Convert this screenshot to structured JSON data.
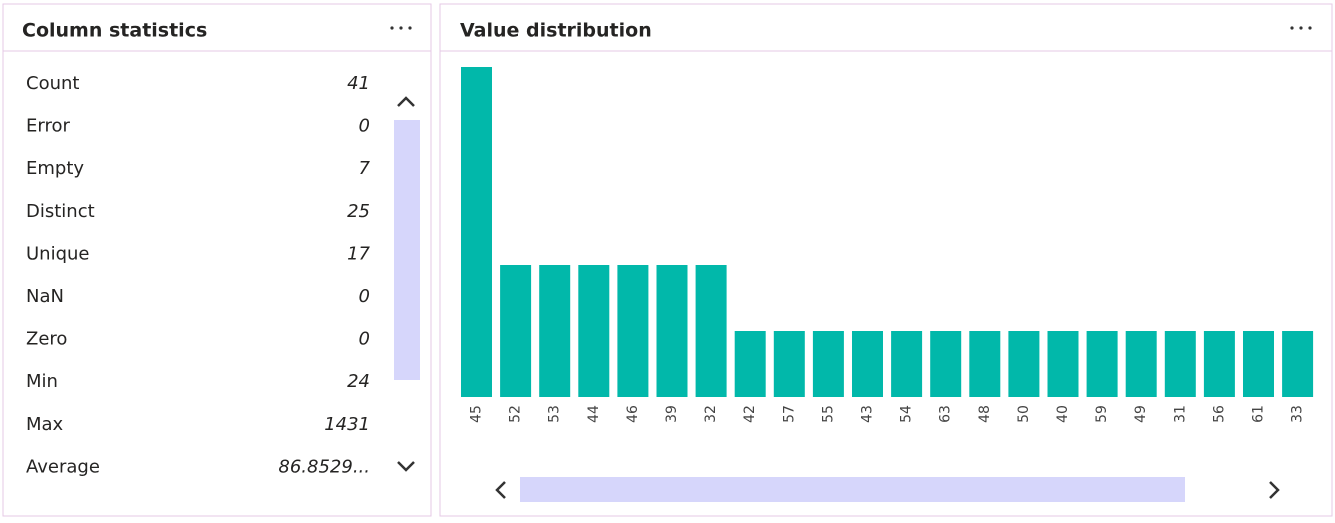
{
  "column_statistics": {
    "title": "Column statistics",
    "rows": [
      {
        "label": "Count",
        "value": 41
      },
      {
        "label": "Error",
        "value": 0
      },
      {
        "label": "Empty",
        "value": 7
      },
      {
        "label": "Distinct",
        "value": 25
      },
      {
        "label": "Unique",
        "value": 17
      },
      {
        "label": "NaN",
        "value": 0
      },
      {
        "label": "Zero",
        "value": 0
      },
      {
        "label": "Min",
        "value": 24
      },
      {
        "label": "Max",
        "value": 1431
      },
      {
        "label": "Average",
        "value": "86.8529..."
      }
    ]
  },
  "chart_data": {
    "type": "bar",
    "title": "Value distribution",
    "color": "#01b8aa",
    "categories": [
      "45",
      "52",
      "53",
      "44",
      "46",
      "39",
      "32",
      "42",
      "57",
      "55",
      "43",
      "54",
      "63",
      "48",
      "50",
      "40",
      "59",
      "49",
      "31",
      "56",
      "61",
      "33"
    ],
    "values": [
      5,
      2,
      2,
      2,
      2,
      2,
      2,
      1,
      1,
      1,
      1,
      1,
      1,
      1,
      1,
      1,
      1,
      1,
      1,
      1,
      1,
      1
    ]
  }
}
